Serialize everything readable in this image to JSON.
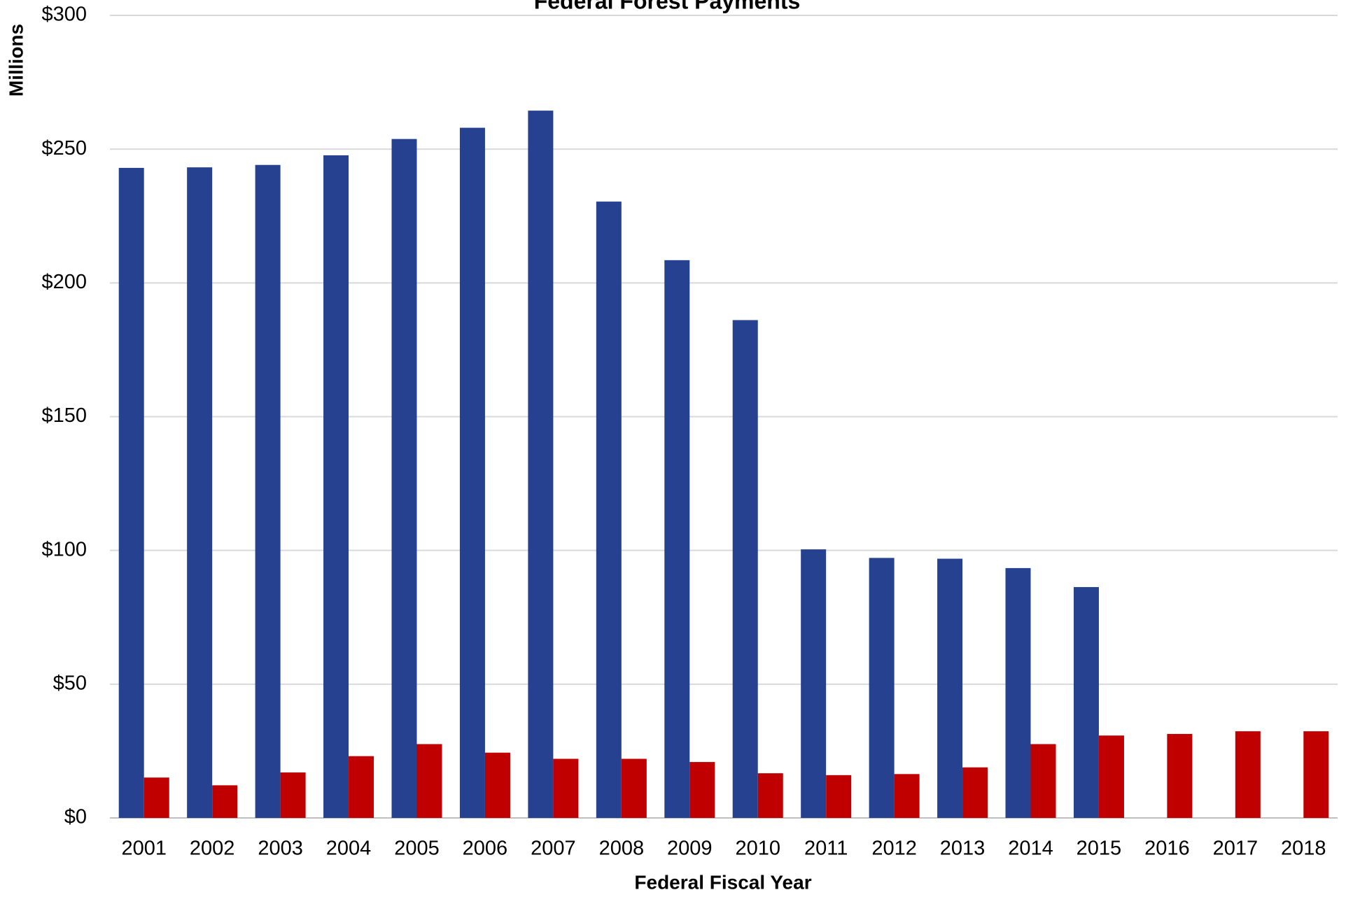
{
  "chart_data": {
    "type": "bar",
    "title": "Federal Forest Payments",
    "ylabel": "Millions",
    "xlabel": "Federal Fiscal Year",
    "categories": [
      "2001",
      "2002",
      "2003",
      "2004",
      "2005",
      "2006",
      "2007",
      "2008",
      "2009",
      "2010",
      "2011",
      "2012",
      "2013",
      "2014",
      "2015",
      "2016",
      "2017",
      "2018"
    ],
    "series": [
      {
        "color": "#264190",
        "values": [
          243,
          243.2,
          244.1,
          247.7,
          253.8,
          258,
          264.4,
          230.4,
          208.5,
          186.1,
          100.4,
          97.2,
          96.9,
          93.4,
          86.3,
          null,
          null,
          null
        ]
      },
      {
        "color": "#c00000",
        "values": [
          15.1,
          12.2,
          17,
          23.1,
          27.6,
          24.4,
          22.1,
          22.1,
          20.9,
          16.7,
          16,
          16.4,
          18.9,
          27.6,
          30.8,
          31.4,
          32.4,
          32.4
        ]
      }
    ],
    "ylim": [
      0,
      300
    ],
    "yticks": [
      {
        "value": 0,
        "label": "$0"
      },
      {
        "value": 50,
        "label": "$50"
      },
      {
        "value": 100,
        "label": "$100"
      },
      {
        "value": 150,
        "label": "$150"
      },
      {
        "value": 200,
        "label": "$200"
      },
      {
        "value": 250,
        "label": "$250"
      },
      {
        "value": 300,
        "label": "$300"
      }
    ],
    "grid": true
  }
}
